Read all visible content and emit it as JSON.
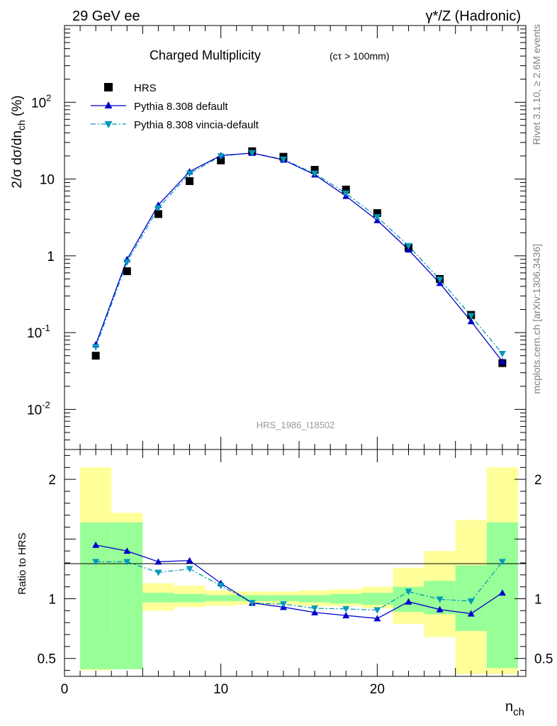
{
  "header": {
    "left": "29 GeV ee",
    "right": "γ*/Z (Hadronic)"
  },
  "side_text": {
    "rivet": "Rivet 3.1.10, ≥ 2.6M events",
    "mcplots": "mcplots.cern.ch [arXiv:1306.3436]"
  },
  "colors": {
    "hrs": "#000000",
    "pythia_default": "#0000cc",
    "pythia_vincia": "#0099bb",
    "band_green": "#98ff98",
    "band_yellow": "#ffff99"
  },
  "chart_data": [
    {
      "type": "scatter",
      "title": "Charged Multiplicity",
      "title_suffix": "(cτ > 100mm)",
      "ylabel": "2/σ dσ/dn_ch (%)",
      "yscale": "log",
      "ylim": [
        0.003,
        1000
      ],
      "xlim": [
        0,
        29.5
      ],
      "y_tick_labels": [
        "10^-2",
        "10^-1",
        "1",
        "10",
        "10^2"
      ],
      "watermark": "HRS_1986_I18502",
      "legend_position": "top-left",
      "x": [
        2,
        4,
        6,
        8,
        10,
        12,
        14,
        16,
        18,
        20,
        22,
        24,
        26,
        28
      ],
      "series": [
        {
          "name": "HRS",
          "marker": "square",
          "values": [
            0.05,
            0.63,
            3.5,
            9.4,
            17.5,
            23.0,
            19.5,
            13.2,
            7.3,
            3.6,
            1.28,
            0.5,
            0.17,
            0.04
          ]
        },
        {
          "name": "Pythia 8.308 default",
          "marker": "triangle-up",
          "line": "solid",
          "values": [
            0.07,
            0.9,
            4.6,
            12.5,
            20.3,
            21.8,
            17.8,
            11.4,
            6.0,
            2.9,
            1.2,
            0.44,
            0.14,
            0.042
          ]
        },
        {
          "name": "Pythia 8.308 vincia-default",
          "marker": "triangle-down",
          "line": "dash-dot",
          "values": [
            0.065,
            0.83,
            4.2,
            11.8,
            19.9,
            21.9,
            18.0,
            11.8,
            6.5,
            3.2,
            1.35,
            0.49,
            0.165,
            0.053
          ]
        }
      ]
    },
    {
      "type": "line",
      "ylabel": "Ratio to HRS",
      "xlabel": "n_ch",
      "ylim": [
        0.35,
        2.25
      ],
      "xlim": [
        0,
        29.5
      ],
      "x_ticks": [
        0,
        10,
        20
      ],
      "y_ticks": [
        0.5,
        1,
        2
      ],
      "x": [
        2,
        4,
        6,
        8,
        10,
        12,
        14,
        16,
        18,
        20,
        22,
        24,
        26,
        28
      ],
      "bands": {
        "edges": [
          1,
          3,
          5,
          7,
          9,
          11,
          13,
          15,
          17,
          19,
          21,
          23,
          25,
          27,
          29
        ],
        "yellow_low": [
          0.4,
          0.71,
          0.9,
          0.93,
          0.94,
          0.95,
          0.95,
          0.94,
          0.94,
          0.92,
          0.79,
          0.68,
          0.37,
          0.37
        ],
        "yellow_high": [
          2.1,
          1.72,
          1.13,
          1.11,
          1.07,
          1.06,
          1.06,
          1.07,
          1.08,
          1.1,
          1.26,
          1.4,
          1.66,
          2.1
        ],
        "green_low": [
          0.41,
          0.41,
          0.97,
          0.97,
          0.98,
          0.98,
          0.98,
          0.97,
          0.96,
          0.95,
          0.89,
          0.87,
          0.73,
          0.42
        ],
        "green_high": [
          1.64,
          1.64,
          1.05,
          1.04,
          1.03,
          1.03,
          1.03,
          1.03,
          1.04,
          1.05,
          1.1,
          1.15,
          1.28,
          1.64
        ]
      },
      "series": [
        {
          "name": "Pythia 8.308 default",
          "values": [
            1.45,
            1.4,
            1.31,
            1.32,
            1.13,
            0.965,
            0.93,
            0.885,
            0.86,
            0.835,
            0.975,
            0.91,
            0.875,
            1.05
          ]
        },
        {
          "name": "Pythia 8.308 vincia-default",
          "values": [
            1.31,
            1.31,
            1.22,
            1.25,
            1.11,
            0.965,
            0.955,
            0.92,
            0.915,
            0.905,
            1.06,
            0.995,
            0.98,
            1.31
          ]
        }
      ]
    }
  ]
}
